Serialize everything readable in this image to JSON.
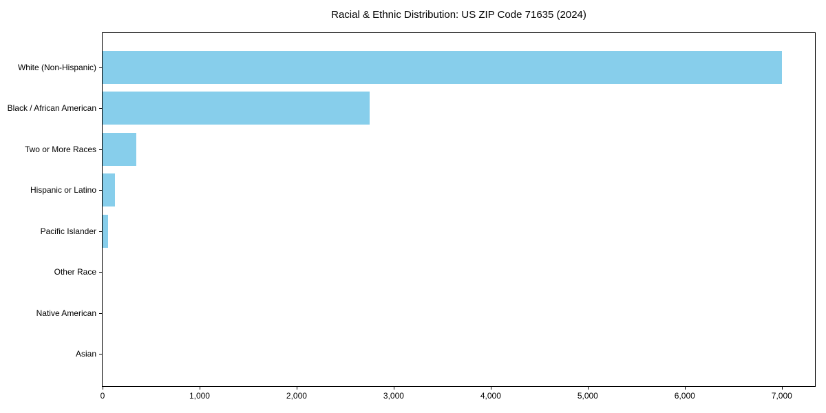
{
  "title": "Racial & Ethnic Distribution: US ZIP Code 71635 (2024)",
  "chart_data": {
    "type": "bar",
    "orientation": "horizontal",
    "title": "Racial & Ethnic Distribution: US ZIP Code 71635 (2024)",
    "categories": [
      "White (Non-Hispanic)",
      "Black / African American",
      "Two or More Races",
      "Hispanic or Latino",
      "Pacific Islander",
      "Other Race",
      "Native American",
      "Asian"
    ],
    "values": [
      7000,
      2750,
      350,
      130,
      55,
      0,
      0,
      0
    ],
    "xlabel": "",
    "ylabel": "",
    "xlim": [
      0,
      7342
    ],
    "x_ticks": [
      0,
      1000,
      2000,
      3000,
      4000,
      5000,
      6000,
      7000
    ],
    "x_tick_labels": [
      "0",
      "1,000",
      "2,000",
      "3,000",
      "4,000",
      "5,000",
      "6,000",
      "7,000"
    ],
    "bar_color": "#87CEEB",
    "axis_color": "#000000",
    "text_color": "#000000",
    "background_color": "#ffffff",
    "grid": false,
    "legend": null
  }
}
